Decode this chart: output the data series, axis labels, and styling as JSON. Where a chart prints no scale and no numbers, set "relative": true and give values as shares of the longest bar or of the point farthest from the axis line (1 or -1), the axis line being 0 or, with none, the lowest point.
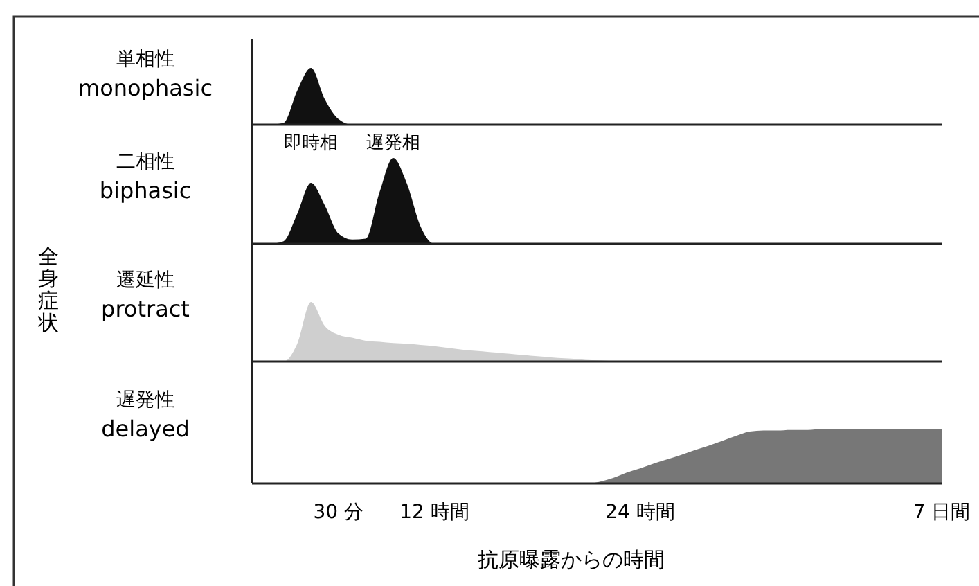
{
  "chart_data": [
    {
      "type": "area",
      "relative": true,
      "ylabel": "単相性\nmonophasic",
      "tick_labels": false,
      "annotations": [
        "全身症状"
      ],
      "categories": [
        null,
        null,
        null,
        null,
        null,
        null,
        null,
        null,
        null,
        null,
        null,
        null,
        null,
        null,
        null,
        null,
        null,
        null,
        null,
        null,
        null,
        null,
        null,
        null,
        null,
        null,
        null,
        null,
        null,
        null,
        null,
        null,
        null,
        null,
        null,
        null,
        null,
        null,
        null,
        null,
        null,
        null,
        null,
        null,
        null,
        null,
        null,
        null,
        null,
        null,
        null
      ],
      "series": [
        {
          "color": "#111111",
          "values": [
            0,
            0,
            0.03,
            0.6,
            1,
            0.45,
            0.1,
            0,
            0,
            0,
            0,
            0,
            0,
            0,
            0,
            0,
            0,
            0,
            0,
            0,
            0,
            0,
            0,
            0,
            0,
            0,
            0,
            0,
            0,
            0,
            0,
            0,
            0,
            0,
            0,
            0,
            0,
            0,
            0,
            0,
            0,
            0,
            0,
            0,
            0,
            0,
            0,
            0,
            0,
            0,
            0
          ]
        }
      ]
    },
    {
      "type": "area",
      "relative": true,
      "ylabel": "二相性\nbiphasic",
      "tick_labels": false,
      "annotations": [
        "即時相",
        "遅発相"
      ],
      "categories": [
        null,
        null,
        null,
        null,
        null,
        null,
        null,
        null,
        null,
        null,
        null,
        null,
        null,
        null,
        null,
        null,
        null,
        null,
        null,
        null,
        null,
        null,
        null,
        null,
        null,
        null,
        null,
        null,
        null,
        null,
        null,
        null,
        null,
        null,
        null,
        null,
        null,
        null,
        null,
        null,
        null,
        null,
        null,
        null,
        null,
        null,
        null,
        null,
        null,
        null,
        null
      ],
      "series": [
        {
          "color": "#111111",
          "values": [
            0,
            0,
            0.03,
            0.35,
            0.71,
            0.45,
            0.12,
            0.05,
            0.06,
            0.6,
            1,
            0.7,
            0.2,
            0,
            0,
            0,
            0,
            0,
            0,
            0,
            0,
            0,
            0,
            0,
            0,
            0,
            0,
            0,
            0,
            0,
            0,
            0,
            0,
            0,
            0,
            0,
            0,
            0,
            0,
            0,
            0,
            0,
            0,
            0,
            0,
            0,
            0,
            0,
            0,
            0,
            0
          ]
        }
      ]
    },
    {
      "type": "area",
      "relative": true,
      "ylabel": "遷延性\nprotract",
      "tick_labels": false,
      "categories": [
        null,
        null,
        null,
        null,
        null,
        null,
        null,
        null,
        null,
        null,
        null,
        null,
        null,
        null,
        null,
        null,
        null,
        null,
        null,
        null,
        null,
        null,
        null,
        null,
        null,
        null,
        null,
        null,
        null,
        null,
        null,
        null,
        null,
        null,
        null,
        null,
        null,
        null,
        null,
        null,
        null,
        null,
        null,
        null,
        null,
        null,
        null,
        null,
        null,
        null,
        null
      ],
      "series": [
        {
          "color": "#cfcfcf",
          "values": [
            0,
            0,
            0,
            0.3,
            1,
            0.6,
            0.45,
            0.4,
            0.35,
            0.33,
            0.31,
            0.3,
            0.28,
            0.26,
            0.23,
            0.2,
            0.18,
            0.16,
            0.14,
            0.12,
            0.1,
            0.08,
            0.06,
            0.05,
            0.03,
            0.02,
            0.01,
            0.01,
            0,
            0,
            0,
            0,
            0,
            0,
            0,
            0,
            0,
            0,
            0,
            0,
            0,
            0,
            0,
            0,
            0,
            0,
            0,
            0,
            0,
            0,
            0
          ]
        }
      ]
    },
    {
      "type": "area",
      "relative": true,
      "ylabel": "遅発性\ndelayed",
      "xlabel": "抗原曝露からの時間",
      "tick_labels": "x",
      "categories": [
        null,
        null,
        null,
        null,
        null,
        null,
        "30 分",
        null,
        null,
        null,
        null,
        null,
        null,
        "12 時間",
        null,
        null,
        null,
        null,
        null,
        null,
        null,
        null,
        null,
        null,
        null,
        null,
        null,
        null,
        "24 時間",
        null,
        null,
        null,
        null,
        null,
        null,
        null,
        null,
        null,
        null,
        null,
        null,
        null,
        null,
        null,
        null,
        null,
        null,
        null,
        null,
        null,
        "7 日間"
      ],
      "series": [
        {
          "color": "#777777",
          "values": [
            0,
            0,
            0,
            0,
            0,
            0,
            0,
            0,
            0,
            0,
            0,
            0,
            0,
            0,
            0,
            0,
            0,
            0,
            0,
            0,
            0,
            0,
            0,
            0,
            0,
            0.03,
            0.1,
            0.2,
            0.28,
            0.37,
            0.45,
            0.53,
            0.62,
            0.7,
            0.79,
            0.88,
            0.96,
            0.98,
            0.98,
            0.99,
            0.99,
            1,
            1,
            1,
            1,
            1,
            1,
            1,
            1,
            1,
            1
          ]
        }
      ]
    }
  ]
}
